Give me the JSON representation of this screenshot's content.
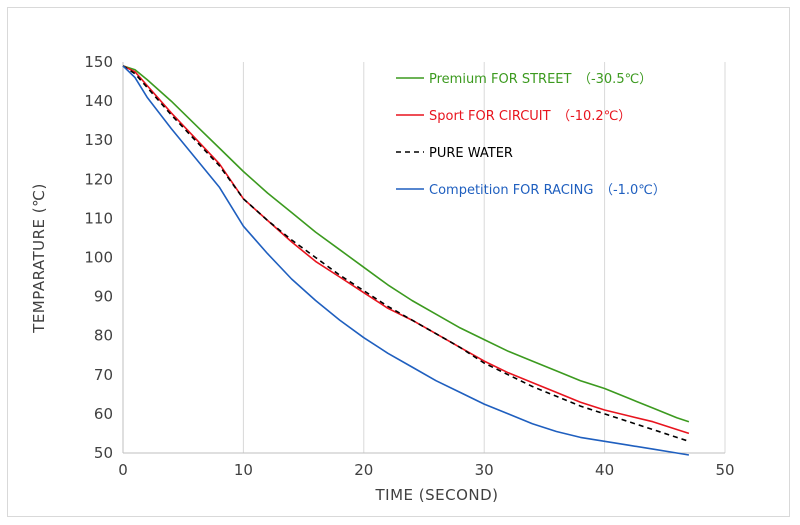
{
  "chart_data": {
    "type": "line",
    "title": "",
    "xlabel": "TIME (SECOND)",
    "ylabel": "TEMPARATURE (℃)",
    "xlim": [
      0,
      50
    ],
    "ylim": [
      50,
      150
    ],
    "x_ticks": [
      "0",
      "10",
      "20",
      "30",
      "40",
      "50"
    ],
    "y_ticks": [
      "50",
      "60",
      "70",
      "80",
      "90",
      "100",
      "110",
      "120",
      "130",
      "140",
      "150"
    ],
    "grid": "vertical",
    "legend_position": "top-right",
    "series": [
      {
        "name": "Premium FOR STREET　（-30.5℃）",
        "color": "#3c9a1f",
        "style": "solid",
        "points": [
          [
            0,
            149
          ],
          [
            1,
            148
          ],
          [
            2,
            145.5
          ],
          [
            4,
            140
          ],
          [
            6,
            134
          ],
          [
            8,
            128
          ],
          [
            10,
            122
          ],
          [
            12,
            116.5
          ],
          [
            14,
            111.5
          ],
          [
            16,
            106.5
          ],
          [
            18,
            102
          ],
          [
            20,
            97.5
          ],
          [
            22,
            93
          ],
          [
            24,
            89
          ],
          [
            26,
            85.5
          ],
          [
            28,
            82
          ],
          [
            30,
            79
          ],
          [
            32,
            76
          ],
          [
            34,
            73.5
          ],
          [
            36,
            71
          ],
          [
            38,
            68.5
          ],
          [
            40,
            66.5
          ],
          [
            42,
            64
          ],
          [
            44,
            61.5
          ],
          [
            46,
            59
          ],
          [
            47,
            58
          ]
        ]
      },
      {
        "name": "Sport FOR CIRCUIT　（-10.2℃）",
        "color": "#e8141e",
        "style": "solid",
        "points": [
          [
            0,
            149
          ],
          [
            1,
            147.5
          ],
          [
            2,
            144
          ],
          [
            4,
            137
          ],
          [
            6,
            130.5
          ],
          [
            8,
            124
          ],
          [
            10,
            115
          ],
          [
            12,
            109.5
          ],
          [
            14,
            104
          ],
          [
            16,
            99
          ],
          [
            18,
            95
          ],
          [
            20,
            91
          ],
          [
            22,
            87
          ],
          [
            24,
            84
          ],
          [
            26,
            80.5
          ],
          [
            28,
            77
          ],
          [
            30,
            73.5
          ],
          [
            32,
            70.5
          ],
          [
            34,
            68
          ],
          [
            36,
            65.5
          ],
          [
            38,
            63
          ],
          [
            40,
            61
          ],
          [
            42,
            59.5
          ],
          [
            44,
            58
          ],
          [
            46,
            56
          ],
          [
            47,
            55
          ]
        ]
      },
      {
        "name": "PURE WATER",
        "color": "#000000",
        "style": "dashed",
        "points": [
          [
            0,
            149
          ],
          [
            1,
            147
          ],
          [
            2,
            143.5
          ],
          [
            4,
            136.5
          ],
          [
            6,
            130
          ],
          [
            8,
            123.5
          ],
          [
            10,
            115
          ],
          [
            12,
            109.5
          ],
          [
            14,
            104.5
          ],
          [
            16,
            100
          ],
          [
            18,
            95.5
          ],
          [
            20,
            91.5
          ],
          [
            22,
            87.5
          ],
          [
            24,
            84
          ],
          [
            26,
            80.5
          ],
          [
            28,
            77
          ],
          [
            30,
            73
          ],
          [
            32,
            70
          ],
          [
            34,
            67
          ],
          [
            36,
            64.5
          ],
          [
            38,
            62
          ],
          [
            40,
            60
          ],
          [
            42,
            58
          ],
          [
            44,
            56
          ],
          [
            46,
            54
          ],
          [
            47,
            53
          ]
        ]
      },
      {
        "name": "Competition FOR RACING　（-1.0℃）",
        "color": "#1f5fbf",
        "style": "solid",
        "points": [
          [
            0,
            149
          ],
          [
            1,
            146
          ],
          [
            2,
            141
          ],
          [
            4,
            133
          ],
          [
            6,
            125.5
          ],
          [
            8,
            118
          ],
          [
            10,
            108
          ],
          [
            12,
            101
          ],
          [
            14,
            94.5
          ],
          [
            16,
            89
          ],
          [
            18,
            84
          ],
          [
            20,
            79.5
          ],
          [
            22,
            75.5
          ],
          [
            24,
            72
          ],
          [
            26,
            68.5
          ],
          [
            28,
            65.5
          ],
          [
            30,
            62.5
          ],
          [
            32,
            60
          ],
          [
            34,
            57.5
          ],
          [
            36,
            55.5
          ],
          [
            38,
            54
          ],
          [
            40,
            53
          ],
          [
            42,
            52
          ],
          [
            44,
            51
          ],
          [
            46,
            50
          ],
          [
            47,
            49.5
          ]
        ]
      }
    ]
  }
}
